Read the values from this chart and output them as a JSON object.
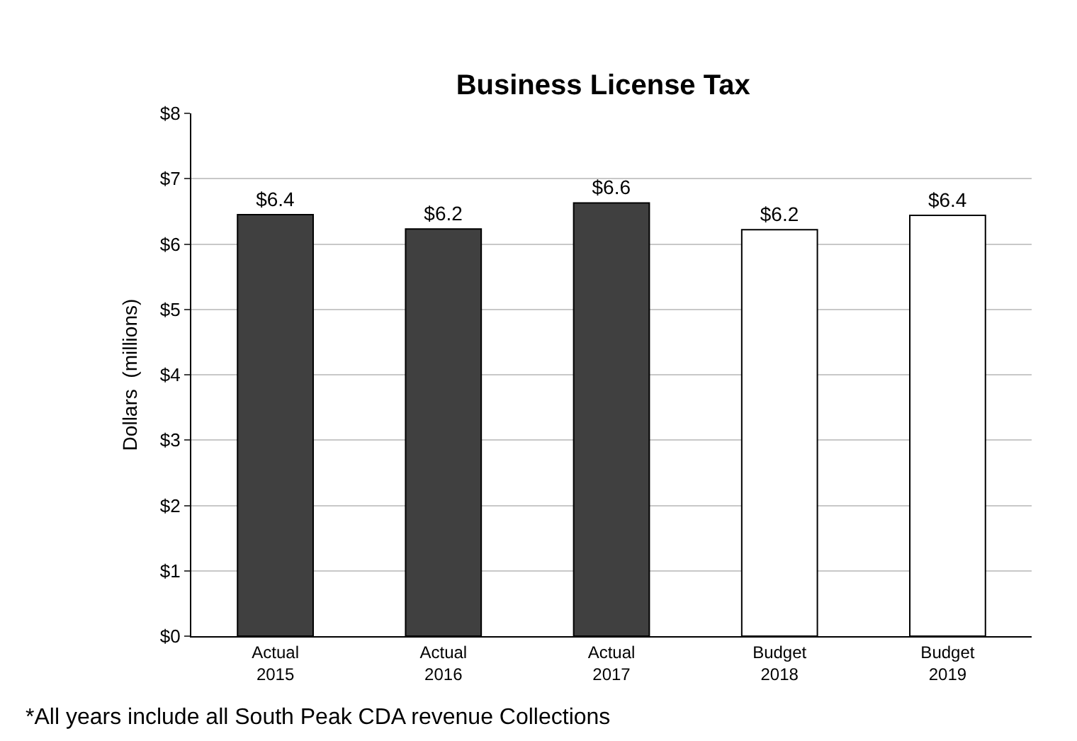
{
  "chart_data": {
    "type": "bar",
    "title": "Business License Tax",
    "ylabel": "Dollars  (millions)",
    "categories": [
      "Actual\n2015",
      "Actual\n2016",
      "Actual\n2017",
      "Budget\n2018",
      "Budget\n2019"
    ],
    "values": [
      6.45,
      6.23,
      6.63,
      6.22,
      6.44
    ],
    "colors": [
      "#404040",
      "#404040",
      "#404040",
      "#ffffff",
      "#ffffff"
    ],
    "value_labels": [
      "$6.4",
      "$6.2",
      "$6.6",
      "$6.2",
      "$6.4"
    ],
    "ylim": [
      0,
      8
    ],
    "yticks": [
      {
        "value": 0,
        "label": "$0"
      },
      {
        "value": 1,
        "label": "$1"
      },
      {
        "value": 2,
        "label": "$2"
      },
      {
        "value": 3,
        "label": "$3"
      },
      {
        "value": 4,
        "label": "$4"
      },
      {
        "value": 5,
        "label": "$5"
      },
      {
        "value": 6,
        "label": "$6"
      },
      {
        "value": 7,
        "label": "$7"
      },
      {
        "value": 8,
        "label": "$8"
      }
    ],
    "grid": "y",
    "annotations": [
      "*All years include all South Peak CDA revenue Collections"
    ]
  }
}
